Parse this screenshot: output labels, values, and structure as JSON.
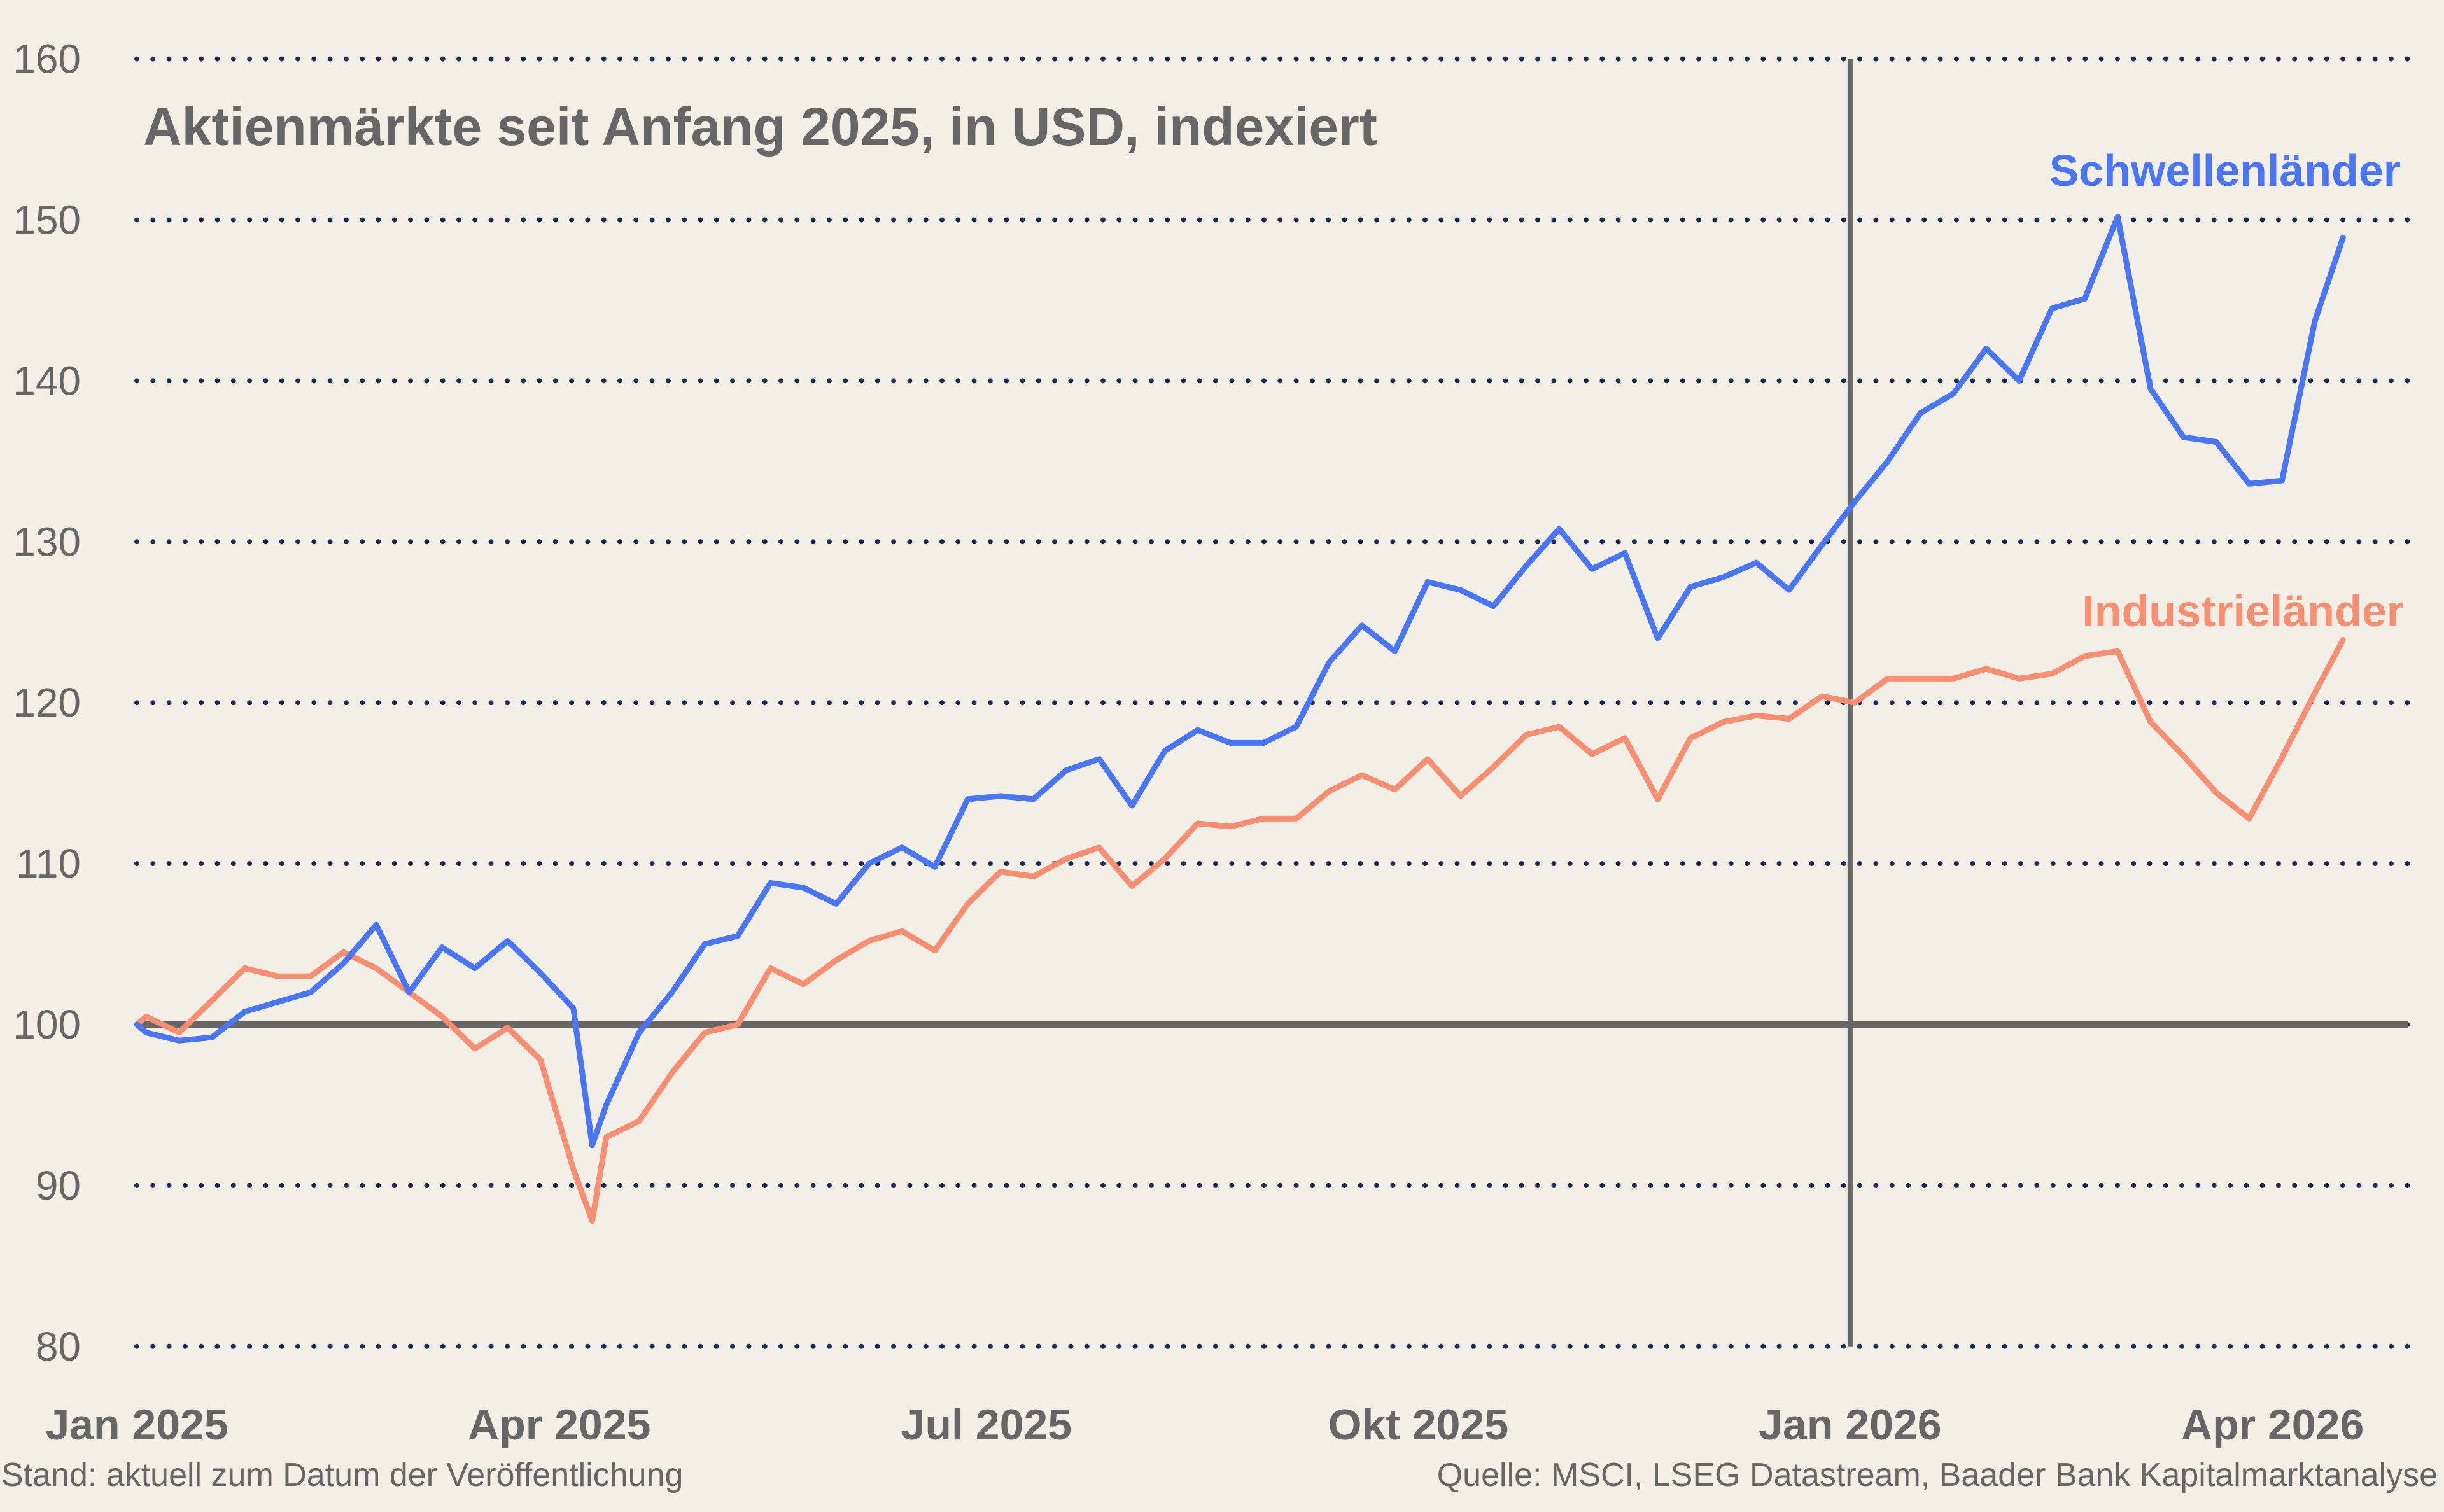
{
  "chart_data": {
    "type": "line",
    "title": "Aktienmärkte seit Anfang 2025, in USD, indexiert",
    "xlabel": "",
    "ylabel": "",
    "ylim": [
      80,
      160
    ],
    "yticks": [
      80,
      90,
      100,
      110,
      120,
      130,
      140,
      150,
      160
    ],
    "xticks": [
      {
        "date": "2025-01-01",
        "label": "Jan 2025"
      },
      {
        "date": "2025-04-01",
        "label": "Apr 2025"
      },
      {
        "date": "2025-07-01",
        "label": "Jul 2025"
      },
      {
        "date": "2025-10-01",
        "label": "Okt 2025"
      },
      {
        "date": "2026-01-01",
        "label": "Jan 2026"
      },
      {
        "date": "2026-04-01",
        "label": "Apr 2026"
      }
    ],
    "grid": "horizontal dotted",
    "baseline": 100,
    "marker_date": "2026-01-01",
    "legend": "inline labels at right end of lines",
    "x": [
      "2025-01-01",
      "2025-01-03",
      "2025-01-10",
      "2025-01-17",
      "2025-01-24",
      "2025-01-31",
      "2025-02-07",
      "2025-02-14",
      "2025-02-21",
      "2025-02-28",
      "2025-03-07",
      "2025-03-14",
      "2025-03-21",
      "2025-03-28",
      "2025-04-04",
      "2025-04-08",
      "2025-04-11",
      "2025-04-18",
      "2025-04-25",
      "2025-05-02",
      "2025-05-09",
      "2025-05-16",
      "2025-05-23",
      "2025-05-30",
      "2025-06-06",
      "2025-06-13",
      "2025-06-20",
      "2025-06-27",
      "2025-07-04",
      "2025-07-11",
      "2025-07-18",
      "2025-07-25",
      "2025-08-01",
      "2025-08-08",
      "2025-08-15",
      "2025-08-22",
      "2025-08-29",
      "2025-09-05",
      "2025-09-12",
      "2025-09-19",
      "2025-09-26",
      "2025-10-03",
      "2025-10-10",
      "2025-10-17",
      "2025-10-24",
      "2025-10-31",
      "2025-11-07",
      "2025-11-14",
      "2025-11-21",
      "2025-11-28",
      "2025-12-05",
      "2025-12-12",
      "2025-12-19",
      "2025-12-26",
      "2026-01-02",
      "2026-01-09",
      "2026-01-16",
      "2026-01-23",
      "2026-01-30",
      "2026-02-06",
      "2026-02-13",
      "2026-02-20",
      "2026-02-27",
      "2026-03-06",
      "2026-03-13",
      "2026-03-20",
      "2026-03-27",
      "2026-04-03",
      "2026-04-10",
      "2026-04-16"
    ],
    "series": [
      {
        "name": "Schwellenländer",
        "color": "#4a76f5",
        "values": [
          100,
          99.5,
          99,
          99.2,
          100.8,
          101.4,
          102,
          103.8,
          106.2,
          102,
          104.8,
          103.5,
          105.2,
          103.2,
          101,
          92.5,
          95,
          99.5,
          102,
          105,
          105.5,
          108.8,
          108.5,
          107.5,
          110,
          111,
          109.8,
          114,
          114.2,
          114,
          115.8,
          116.5,
          113.6,
          117,
          118.3,
          117.5,
          117.5,
          118.5,
          122.5,
          124.8,
          123.2,
          127.5,
          127,
          126,
          128.5,
          130.8,
          128.3,
          129.3,
          124,
          127.2,
          127.8,
          128.7,
          127,
          129.8,
          132.5,
          135,
          138,
          139.2,
          142,
          140,
          144.5,
          145.1,
          150.2,
          139.5,
          136.5,
          136.2,
          133.6,
          133.8,
          143.7,
          148.9
        ]
      },
      {
        "name": "Industrieländer",
        "color": "#f98e72",
        "values": [
          100,
          100.5,
          99.5,
          101.5,
          103.5,
          103,
          103,
          104.5,
          103.5,
          102,
          100.5,
          98.5,
          99.8,
          97.8,
          91,
          87.8,
          93,
          94,
          97,
          99.5,
          100,
          103.5,
          102.5,
          104,
          105.2,
          105.8,
          104.6,
          107.5,
          109.5,
          109.2,
          110.3,
          111,
          108.6,
          110.3,
          112.5,
          112.3,
          112.8,
          112.8,
          114.5,
          115.5,
          114.6,
          116.5,
          114.2,
          116,
          118,
          118.5,
          116.8,
          117.8,
          114,
          117.8,
          118.8,
          119.2,
          119,
          120.4,
          120,
          121.5,
          121.5,
          121.5,
          122.1,
          121.5,
          121.8,
          122.9,
          123.2,
          118.8,
          116.7,
          114.4,
          112.8,
          116.6,
          120.6,
          123.9
        ]
      }
    ]
  },
  "footer": {
    "left": "Stand: aktuell zum Datum der Veröffentlichung",
    "right": "Quelle: MSCI, LSEG Datastream, Baader Bank Kapitalmarktanalyse"
  },
  "colors": {
    "background": "#f3efe7",
    "grid": "#1b2a55",
    "axis_text": "#666666",
    "baseline": "#666666"
  }
}
